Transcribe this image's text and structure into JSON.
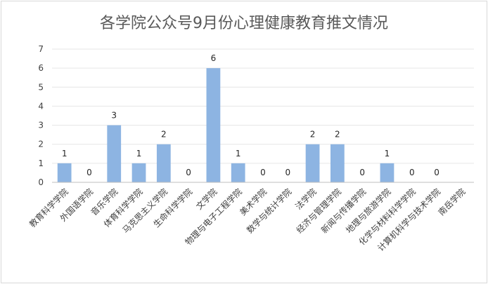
{
  "chart_data": {
    "type": "bar",
    "title": "各学院公众号9月份心理健康教育推文情况",
    "xlabel": "",
    "ylabel": "",
    "ylim": [
      0,
      7
    ],
    "yticks": [
      0,
      1,
      2,
      3,
      4,
      5,
      6,
      7
    ],
    "grid": true,
    "legend": "none",
    "bar_color": "#8db4e2",
    "categories": [
      "教育科学学院",
      "外国语学院",
      "音乐学院",
      "体育科学学院",
      "马克思主义学院",
      "生命科学学院",
      "文学院",
      "物理与电子工程学院",
      "美术学院",
      "数学与统计学院",
      "法学院",
      "经济与管理学院",
      "新闻与传播学院",
      "地理与旅游学院",
      "化学与材料科学学院",
      "计算机科学与技术学院",
      "南岳学院"
    ],
    "values": [
      1,
      0,
      3,
      1,
      2,
      0,
      6,
      1,
      0,
      0,
      2,
      2,
      0,
      1,
      0,
      0,
      null
    ],
    "data_labels": [
      "1",
      "0",
      "3",
      "1",
      "2",
      "0",
      "6",
      "1",
      "0",
      "0",
      "2",
      "2",
      "0",
      "1",
      "0",
      "0",
      ""
    ]
  }
}
